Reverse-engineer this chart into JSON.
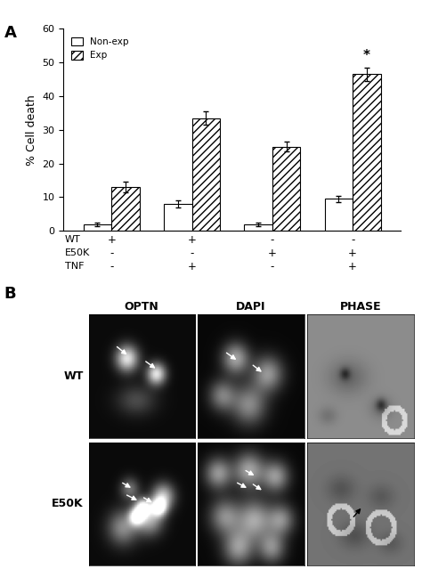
{
  "panel_A_label": "A",
  "panel_B_label": "B",
  "bar_groups": [
    {
      "label_wt": "+",
      "label_e50k": "-",
      "label_tnf": "-",
      "nonexp_val": 2.0,
      "exp_val": 13.0,
      "nonexp_err": 0.5,
      "exp_err": 1.5
    },
    {
      "label_wt": "+",
      "label_e50k": "-",
      "label_tnf": "+",
      "nonexp_val": 8.0,
      "exp_val": 33.5,
      "nonexp_err": 1.0,
      "exp_err": 2.0
    },
    {
      "label_wt": "-",
      "label_e50k": "+",
      "label_tnf": "-",
      "nonexp_val": 2.0,
      "exp_val": 25.0,
      "nonexp_err": 0.5,
      "exp_err": 1.5
    },
    {
      "label_wt": "-",
      "label_e50k": "+",
      "label_tnf": "+",
      "nonexp_val": 9.5,
      "exp_val": 46.5,
      "nonexp_err": 1.0,
      "exp_err": 2.0
    }
  ],
  "ylabel": "% Cell death",
  "ylim": [
    0,
    60
  ],
  "yticks": [
    0,
    10,
    20,
    30,
    40,
    50,
    60
  ],
  "legend_nonexp": "Non-exp",
  "legend_exp": "Exp",
  "hatch_pattern": "////",
  "bar_width": 0.35,
  "star_annotation": "*",
  "star_group_idx": 3,
  "row_labels": [
    "WT",
    "E50K",
    "TNF"
  ],
  "col_labels_wt": [
    "+",
    "+",
    "-",
    "-"
  ],
  "col_labels_e50k": [
    "-",
    "-",
    "+",
    "+"
  ],
  "col_labels_tnf": [
    "-",
    "+",
    "-",
    "+"
  ],
  "microscopy_labels_col": [
    "OPTN",
    "DAPI",
    "PHASE"
  ],
  "microscopy_labels_row": [
    "WT",
    "E50K"
  ],
  "bg_color": "#ffffff"
}
